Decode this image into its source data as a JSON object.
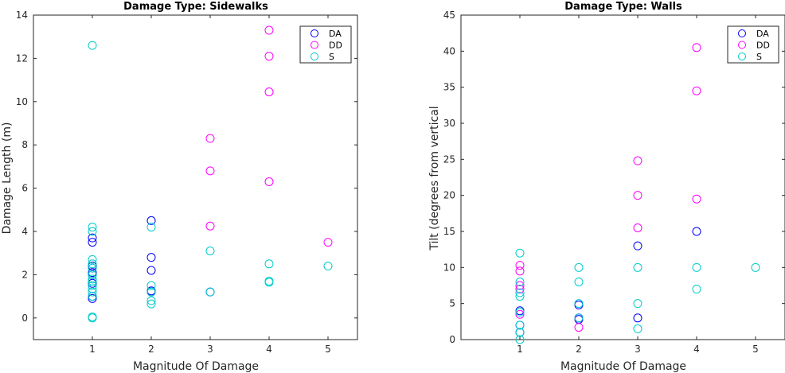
{
  "chart_data": [
    {
      "type": "scatter",
      "title": "Damage Type: Sidewalks",
      "xlabel": "Magnitude Of Damage",
      "ylabel": "Damage Length (m)",
      "xlim": [
        0,
        5.5
      ],
      "ylim": [
        -1,
        14
      ],
      "xticks": [
        1,
        2,
        3,
        4,
        5
      ],
      "yticks": [
        0,
        2,
        4,
        6,
        8,
        10,
        12,
        14
      ],
      "grid": false,
      "legend_position": "top-right",
      "series": [
        {
          "name": "DA",
          "color": "#0000ff",
          "points": [
            [
              1,
              0.9
            ],
            [
              1,
              1.0
            ],
            [
              1,
              1.6
            ],
            [
              1,
              2.0
            ],
            [
              1,
              2.1
            ],
            [
              1,
              2.4
            ],
            [
              1,
              3.5
            ],
            [
              1,
              3.7
            ],
            [
              2,
              1.2
            ],
            [
              2,
              1.25
            ],
            [
              2,
              2.2
            ],
            [
              2,
              2.8
            ],
            [
              2,
              4.5
            ],
            [
              3,
              1.2
            ]
          ]
        },
        {
          "name": "DD",
          "color": "#ff00ff",
          "points": [
            [
              3,
              4.25
            ],
            [
              3,
              6.8
            ],
            [
              3,
              8.3
            ],
            [
              4,
              6.3
            ],
            [
              4,
              10.45
            ],
            [
              4,
              12.1
            ],
            [
              4,
              13.3
            ],
            [
              5,
              3.5
            ]
          ]
        },
        {
          "name": "S",
          "color": "#00cccc",
          "points": [
            [
              1,
              0.0
            ],
            [
              1,
              0.05
            ],
            [
              1,
              1.0
            ],
            [
              1,
              1.2
            ],
            [
              1,
              1.35
            ],
            [
              1,
              1.5
            ],
            [
              1,
              1.7
            ],
            [
              1,
              1.8
            ],
            [
              1,
              2.0
            ],
            [
              1,
              2.3
            ],
            [
              1,
              2.5
            ],
            [
              1,
              2.7
            ],
            [
              1,
              4.0
            ],
            [
              1,
              4.2
            ],
            [
              1,
              12.6
            ],
            [
              2,
              0.65
            ],
            [
              2,
              0.8
            ],
            [
              2,
              1.2
            ],
            [
              2,
              1.5
            ],
            [
              2,
              4.2
            ],
            [
              3,
              1.2
            ],
            [
              3,
              3.1
            ],
            [
              4,
              1.65
            ],
            [
              4,
              1.7
            ],
            [
              4,
              2.5
            ],
            [
              5,
              2.4
            ]
          ]
        }
      ]
    },
    {
      "type": "scatter",
      "title": "Damage Type: Walls",
      "xlabel": "Magnitude Of Damage",
      "ylabel": "Tilt (degrees from vertical",
      "xlim": [
        0,
        5.5
      ],
      "ylim": [
        0,
        45
      ],
      "xticks": [
        1,
        2,
        3,
        4,
        5
      ],
      "yticks": [
        0,
        5,
        10,
        15,
        20,
        25,
        30,
        35,
        40,
        45
      ],
      "grid": false,
      "legend_position": "top-right",
      "series": [
        {
          "name": "DA",
          "color": "#0000ff",
          "points": [
            [
              1,
              1.0
            ],
            [
              1,
              2.0
            ],
            [
              1,
              4.0
            ],
            [
              2,
              2.8
            ],
            [
              2,
              3.0
            ],
            [
              2,
              4.8
            ],
            [
              3,
              3.0
            ],
            [
              3,
              13.0
            ],
            [
              4,
              15.0
            ]
          ]
        },
        {
          "name": "DD",
          "color": "#ff00ff",
          "points": [
            [
              1,
              3.5
            ],
            [
              1,
              7.0
            ],
            [
              1,
              7.5
            ],
            [
              1,
              9.5
            ],
            [
              1,
              10.3
            ],
            [
              2,
              1.7
            ],
            [
              2,
              3.0
            ],
            [
              3,
              15.5
            ],
            [
              3,
              20.0
            ],
            [
              3,
              24.8
            ],
            [
              4,
              19.5
            ],
            [
              4,
              34.5
            ],
            [
              4,
              40.5
            ]
          ]
        },
        {
          "name": "S",
          "color": "#00cccc",
          "points": [
            [
              1,
              0.0
            ],
            [
              1,
              1.0
            ],
            [
              1,
              2.0
            ],
            [
              1,
              3.8
            ],
            [
              1,
              6.0
            ],
            [
              1,
              6.5
            ],
            [
              1,
              8.0
            ],
            [
              1,
              12.0
            ],
            [
              2,
              3.0
            ],
            [
              2,
              5.0
            ],
            [
              2,
              8.0
            ],
            [
              2,
              10.0
            ],
            [
              3,
              1.5
            ],
            [
              3,
              5.0
            ],
            [
              3,
              10.0
            ],
            [
              4,
              7.0
            ],
            [
              4,
              10.0
            ],
            [
              5,
              10.0
            ]
          ]
        }
      ]
    }
  ]
}
